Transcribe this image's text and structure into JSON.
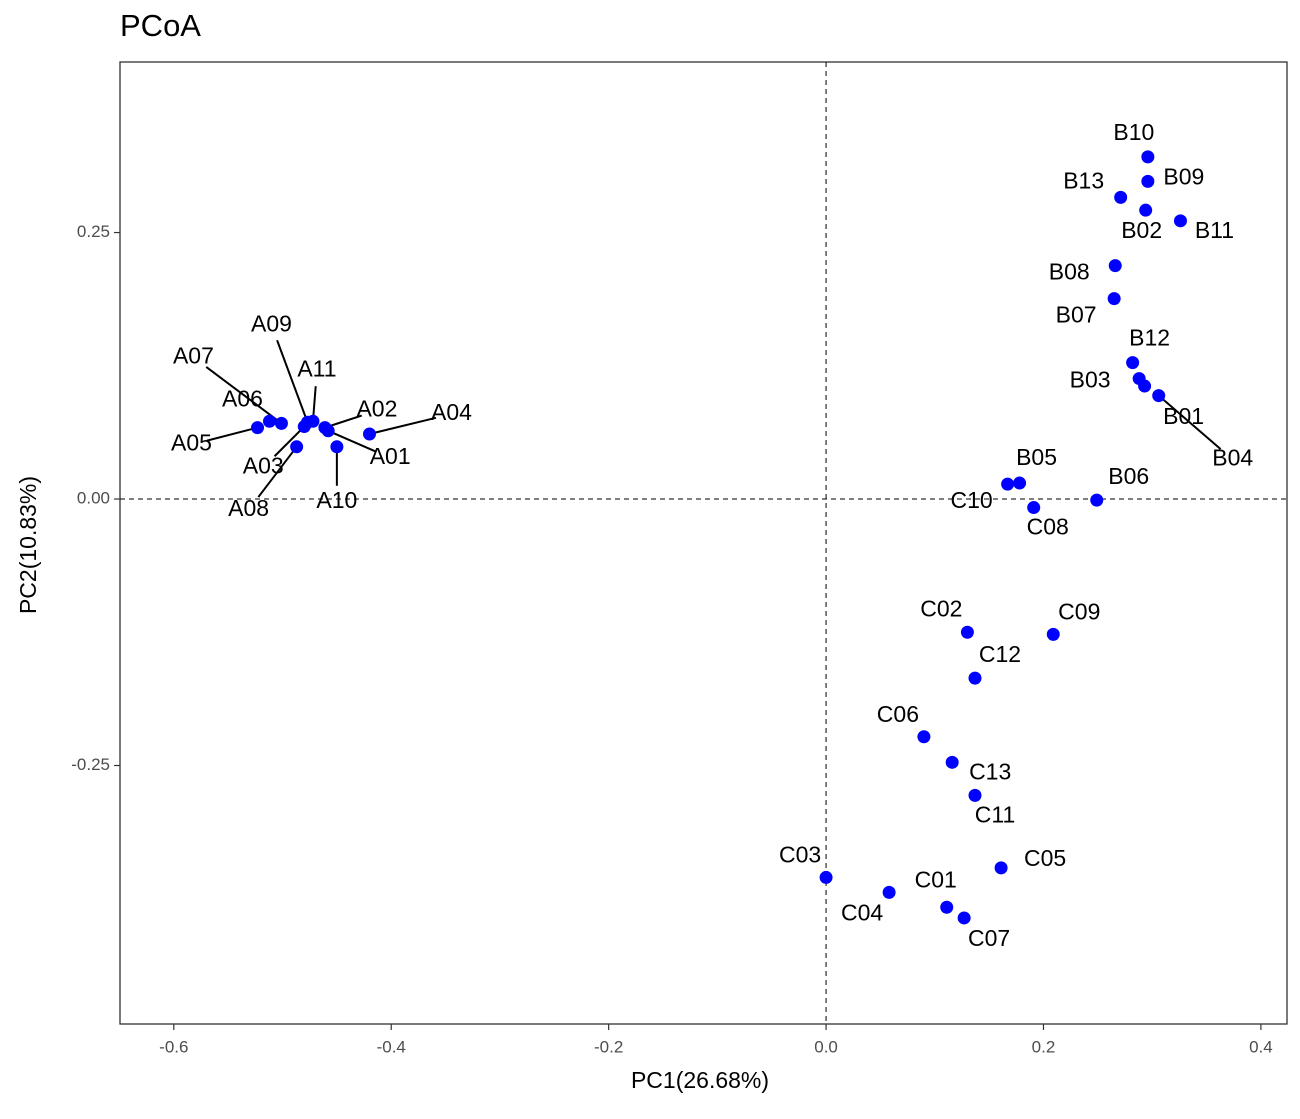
{
  "chart_data": {
    "type": "scatter",
    "title": "PCoA",
    "x_label": "PC1(26.68%)",
    "y_label": "PC2(10.83%)",
    "color": "#0000ff",
    "xlim": [
      -0.6495,
      0.424
    ],
    "ylim": [
      -0.4925,
      0.41
    ],
    "xticks": [
      -0.6,
      -0.4,
      -0.2,
      {
        "value": 0,
        "label": "0.0"
      },
      0.2,
      0.4
    ],
    "yticks": [
      -0.25,
      {
        "value": 0,
        "label": "0.00"
      },
      0.25
    ],
    "reference_lines": {
      "x": 0,
      "y": 0
    },
    "labels": [
      "A01",
      "A02",
      "A03",
      "A04",
      "A05",
      "A06",
      "A07",
      "A08",
      "A09",
      "A10",
      "A11",
      "B01",
      "B02",
      "B03",
      "B04",
      "B05",
      "B06",
      "B07",
      "B08",
      "B09",
      "B10",
      "B11",
      "B12",
      "B13",
      "C01",
      "C02",
      "C03",
      "C04",
      "C05",
      "C06",
      "C07",
      "C08",
      "C09",
      "C10",
      "C11",
      "C12",
      "C13"
    ],
    "x": [
      -0.458,
      -0.461,
      -0.48,
      -0.42,
      -0.523,
      -0.512,
      -0.501,
      -0.487,
      -0.477,
      -0.45,
      -0.472,
      0.293,
      0.294,
      0.288,
      0.306,
      0.178,
      0.249,
      0.265,
      0.266,
      0.296,
      0.296,
      0.326,
      0.282,
      0.271,
      0.111,
      0.13,
      0.0,
      0.058,
      0.161,
      0.09,
      0.127,
      0.191,
      0.209,
      0.167,
      0.137,
      0.137,
      0.116
    ],
    "y": [
      0.064,
      0.067,
      0.068,
      0.061,
      0.067,
      0.073,
      0.071,
      0.049,
      0.072,
      0.049,
      0.073,
      0.106,
      0.271,
      0.113,
      0.097,
      0.015,
      -0.001,
      0.188,
      0.219,
      0.298,
      0.321,
      0.261,
      0.128,
      0.283,
      -0.383,
      -0.125,
      -0.355,
      -0.369,
      -0.346,
      -0.223,
      -0.393,
      -0.008,
      -0.127,
      0.014,
      -0.278,
      -0.168,
      -0.247
    ]
  }
}
